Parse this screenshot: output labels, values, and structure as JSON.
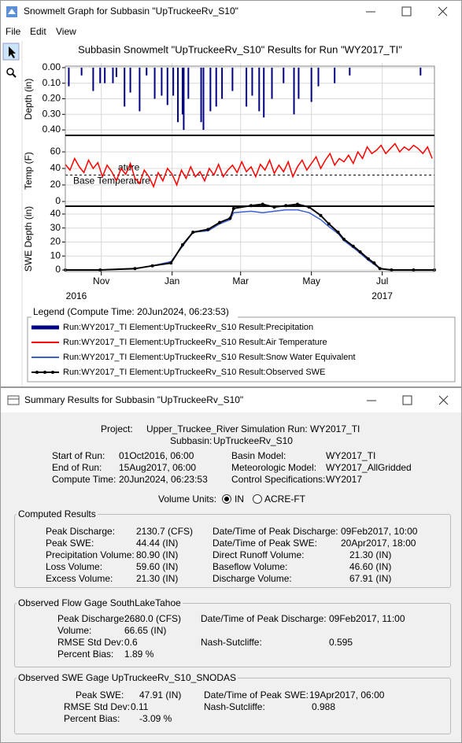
{
  "graph_window": {
    "title": "Snowmelt Graph for Subbasin \"UpTruckeeRv_S10\"",
    "menu": [
      "File",
      "Edit",
      "View"
    ],
    "legend_title": "Legend (Compute Time: 20Jun2024, 06:23:53)"
  },
  "chart_data": [
    {
      "type": "bar",
      "title": "Subbasin Snowmelt \"UpTruckeeRv_S10\" Results for Run \"WY2017_TI\"",
      "y_label": "Depth (in)",
      "inverted": true,
      "grid": true,
      "x": [
        3,
        14,
        24,
        30,
        34,
        41,
        44,
        51,
        56,
        64,
        70,
        77,
        83,
        88,
        93,
        97,
        101,
        102,
        106,
        117,
        119,
        125,
        130,
        135,
        144,
        156,
        161,
        167,
        171,
        178,
        188,
        197,
        201,
        212,
        218,
        232,
        245,
        306
      ],
      "series": [
        {
          "name": "Run:WY2017_TI Element:UpTruckeeRv_S10 Result:Precipitation",
          "color": "#000080",
          "values": [
            0.12,
            0.05,
            0.15,
            0.1,
            0.1,
            0.1,
            0.06,
            0.25,
            0.16,
            0.28,
            0.05,
            0.2,
            0.18,
            0.24,
            0.18,
            0.35,
            0.3,
            0.4,
            0.2,
            0.35,
            0.4,
            0.28,
            0.25,
            0.2,
            0.15,
            0.25,
            0.18,
            0.28,
            0.32,
            0.2,
            0.1,
            0.3,
            0.2,
            0.22,
            0.12,
            0.1,
            0.05,
            0.05
          ]
        }
      ],
      "ylim": [
        -0.03,
        0.435
      ],
      "yticks": [
        {
          "value": 0,
          "label": "0.00"
        },
        {
          "value": 0.1,
          "label": "0.10"
        },
        {
          "value": 0.2,
          "label": "0.20"
        },
        {
          "value": 0.3,
          "label": "0.30"
        },
        {
          "value": 0.4,
          "label": "0.40"
        }
      ]
    },
    {
      "type": "line",
      "y_label": "Temp (F)",
      "grid": true,
      "annotations": [
        "ature",
        "Base Temperature"
      ],
      "base_temperature": 32,
      "x": [
        0,
        4,
        8,
        12,
        16,
        20,
        24,
        28,
        32,
        36,
        40,
        44,
        48,
        52,
        56,
        60,
        64,
        68,
        72,
        76,
        80,
        84,
        88,
        92,
        96,
        100,
        104,
        108,
        112,
        116,
        120,
        124,
        128,
        132,
        136,
        140,
        144,
        148,
        152,
        156,
        160,
        164,
        168,
        172,
        176,
        180,
        184,
        188,
        192,
        196,
        200,
        204,
        208,
        212,
        216,
        220,
        224,
        228,
        232,
        236,
        240,
        244,
        248,
        252,
        256,
        260,
        264,
        268,
        272,
        276,
        280,
        284,
        288,
        292,
        296,
        300,
        304,
        308,
        312,
        316
      ],
      "series": [
        {
          "name": "Run:WY2017_TI Element:UpTruckeeRv_S10 Result:Air Temperature",
          "color": "#ff0000",
          "values": [
            45,
            38,
            52,
            42,
            35,
            50,
            40,
            47,
            30,
            44,
            36,
            25,
            40,
            33,
            46,
            28,
            22,
            38,
            30,
            18,
            35,
            25,
            40,
            33,
            20,
            38,
            28,
            42,
            30,
            36,
            25,
            40,
            32,
            45,
            30,
            38,
            44,
            35,
            48,
            36,
            42,
            30,
            45,
            38,
            50,
            34,
            44,
            36,
            48,
            30,
            42,
            50,
            38,
            46,
            54,
            40,
            50,
            58,
            44,
            52,
            48,
            56,
            46,
            60,
            52,
            66,
            58,
            62,
            68,
            58,
            64,
            70,
            60,
            66,
            62,
            68,
            64,
            58,
            66,
            52
          ]
        }
      ],
      "ylim": [
        -5.7,
        80
      ],
      "yticks": [
        0,
        20,
        40,
        60
      ]
    },
    {
      "type": "line",
      "y_label": "SWE Depth (in)",
      "grid": true,
      "x": [
        0,
        30,
        60,
        75,
        91,
        101,
        110,
        123,
        133,
        142,
        145,
        160,
        170,
        180,
        190,
        200,
        210,
        220,
        227,
        235,
        240,
        248,
        254,
        261,
        266,
        271,
        281,
        300,
        318
      ],
      "series": [
        {
          "name": "Run:WY2017_TI Element:UpTruckeeRv_S10 Result:Snow Water Equivalent",
          "color": "#3a5fd0",
          "values": [
            0,
            0,
            1,
            3,
            6,
            17,
            27,
            28,
            33,
            36,
            41,
            42,
            41,
            42,
            43,
            43,
            41,
            36,
            31,
            26,
            21,
            16,
            12,
            7,
            4,
            1,
            0,
            0,
            0
          ]
        },
        {
          "name": "Run:WY2017_TI Element:UpTruckeeRv_S10 Result:Observed SWE",
          "color": "#000000",
          "markers": true,
          "values": [
            0,
            0,
            1,
            3,
            5,
            18,
            27,
            29,
            34,
            37,
            44,
            46,
            47,
            45,
            46,
            47,
            45,
            39,
            33,
            27,
            22,
            17,
            13,
            8,
            5,
            1,
            0,
            0,
            0
          ]
        }
      ],
      "ylim": [
        -1.1,
        45.6
      ],
      "yticks": [
        0,
        10,
        20,
        30,
        40
      ],
      "xlim": [
        0,
        318
      ],
      "xticks": [
        {
          "value": 31,
          "label": "Nov"
        },
        {
          "value": 92,
          "label": "Jan"
        },
        {
          "value": 151,
          "label": "Mar"
        },
        {
          "value": 212,
          "label": "May"
        },
        {
          "value": 273,
          "label": "Jul"
        }
      ],
      "year_ticks": [
        {
          "value": 0,
          "label": "2016"
        },
        {
          "value": 273,
          "label": "2017"
        }
      ]
    }
  ],
  "summary_window": {
    "title": "Summary Results for Subbasin \"UpTruckeeRv_S10\"",
    "run_info": [
      {
        "label": "Project:",
        "value": "Upper_Truckee_River"
      },
      {
        "label": "Simulation Run:",
        "value": "WY2017_TI"
      },
      {
        "label": "Subbasin:",
        "value": "UpTruckeeRv_S10"
      },
      {
        "label": "Start of Run:",
        "value": "01Oct2016, 06:00"
      },
      {
        "label": "Basin Model:",
        "value": "WY2017_TI"
      },
      {
        "label": "End of Run:",
        "value": "15Aug2017, 06:00"
      },
      {
        "label": "Meteorologic Model:",
        "value": "WY2017_AllGridded"
      },
      {
        "label": "Compute Time:",
        "value": "20Jun2024, 06:23:53"
      },
      {
        "label": "Control Specifications:",
        "value": "WY2017"
      }
    ],
    "volume_units": {
      "label": "Volume Units:",
      "options": [
        "IN",
        "ACRE-FT"
      ],
      "selected": 0
    },
    "groups": [
      {
        "title": "Computed Results",
        "items": [
          {
            "label": "Peak Discharge:",
            "value": "2130.7 (CFS)"
          },
          {
            "label": "Date/Time of Peak Discharge:",
            "value": "09Feb2017, 10:00"
          },
          {
            "label": "Peak SWE:",
            "value": "44.44 (IN)"
          },
          {
            "label": "Date/Time of Peak SWE:",
            "value": "20Apr2017, 18:00"
          },
          {
            "label": "Precipitation Volume:",
            "value": "80.90 (IN)"
          },
          {
            "label": "Direct Runoff Volume:",
            "value": "21.30 (IN)"
          },
          {
            "label": "Loss Volume:",
            "value": "59.60 (IN)"
          },
          {
            "label": "Baseflow Volume:",
            "value": "46.60 (IN)"
          },
          {
            "label": "Excess Volume:",
            "value": "21.30 (IN)"
          },
          {
            "label": "Discharge Volume:",
            "value": "67.91 (IN)"
          }
        ]
      },
      {
        "title": "Observed Flow Gage SouthLakeTahoe",
        "items": [
          {
            "label": "Peak Discharge:",
            "value": "2680.0 (CFS)"
          },
          {
            "label": "Date/Time of Peak Discharge:",
            "value": "09Feb2017, 11:00"
          },
          {
            "label": "Volume:",
            "value": "66.65 (IN)"
          },
          {
            "label": "RMSE Std Dev:",
            "value": "0.6"
          },
          {
            "label": "Nash-Sutcliffe:",
            "value": "0.595"
          },
          {
            "label": "Percent Bias:",
            "value": "1.89 %"
          }
        ]
      },
      {
        "title": "Observed SWE Gage UpTruckeeRv_S10_SNODAS",
        "items": [
          {
            "label": "Peak SWE:",
            "value": "47.91 (IN)"
          },
          {
            "label": "Date/Time of Peak SWE:",
            "value": "19Apr2017, 06:00"
          },
          {
            "label": "RMSE Std Dev:",
            "value": "0.11"
          },
          {
            "label": "Nash-Sutcliffe:",
            "value": "0.988"
          },
          {
            "label": "Percent Bias:",
            "value": "-3.09 %"
          }
        ]
      }
    ]
  }
}
